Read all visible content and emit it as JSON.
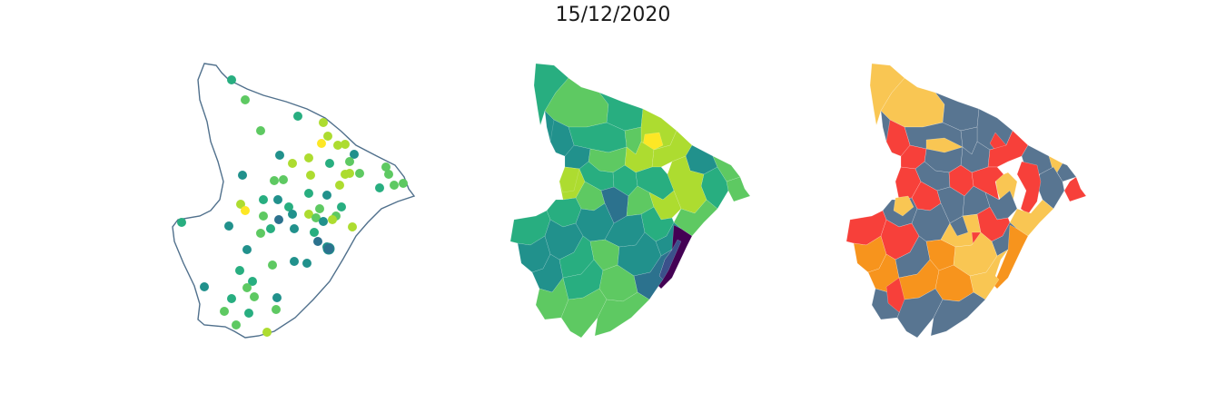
{
  "figure": {
    "title": "15/12/2020"
  },
  "colors": {
    "outline": "#50708c",
    "viridis": [
      "#440154",
      "#3b518b",
      "#2c728e",
      "#21918c",
      "#28ae80",
      "#5ec962",
      "#addc30",
      "#fde725"
    ],
    "classes": [
      "#f9c653",
      "#f7941d",
      "#f7403a",
      "#587591"
    ]
  },
  "panels": [
    {
      "name": "stations",
      "kind": "point-map"
    },
    {
      "name": "interpolated",
      "kind": "choropleth-continuous"
    },
    {
      "name": "classified",
      "kind": "choropleth-classes"
    }
  ]
}
